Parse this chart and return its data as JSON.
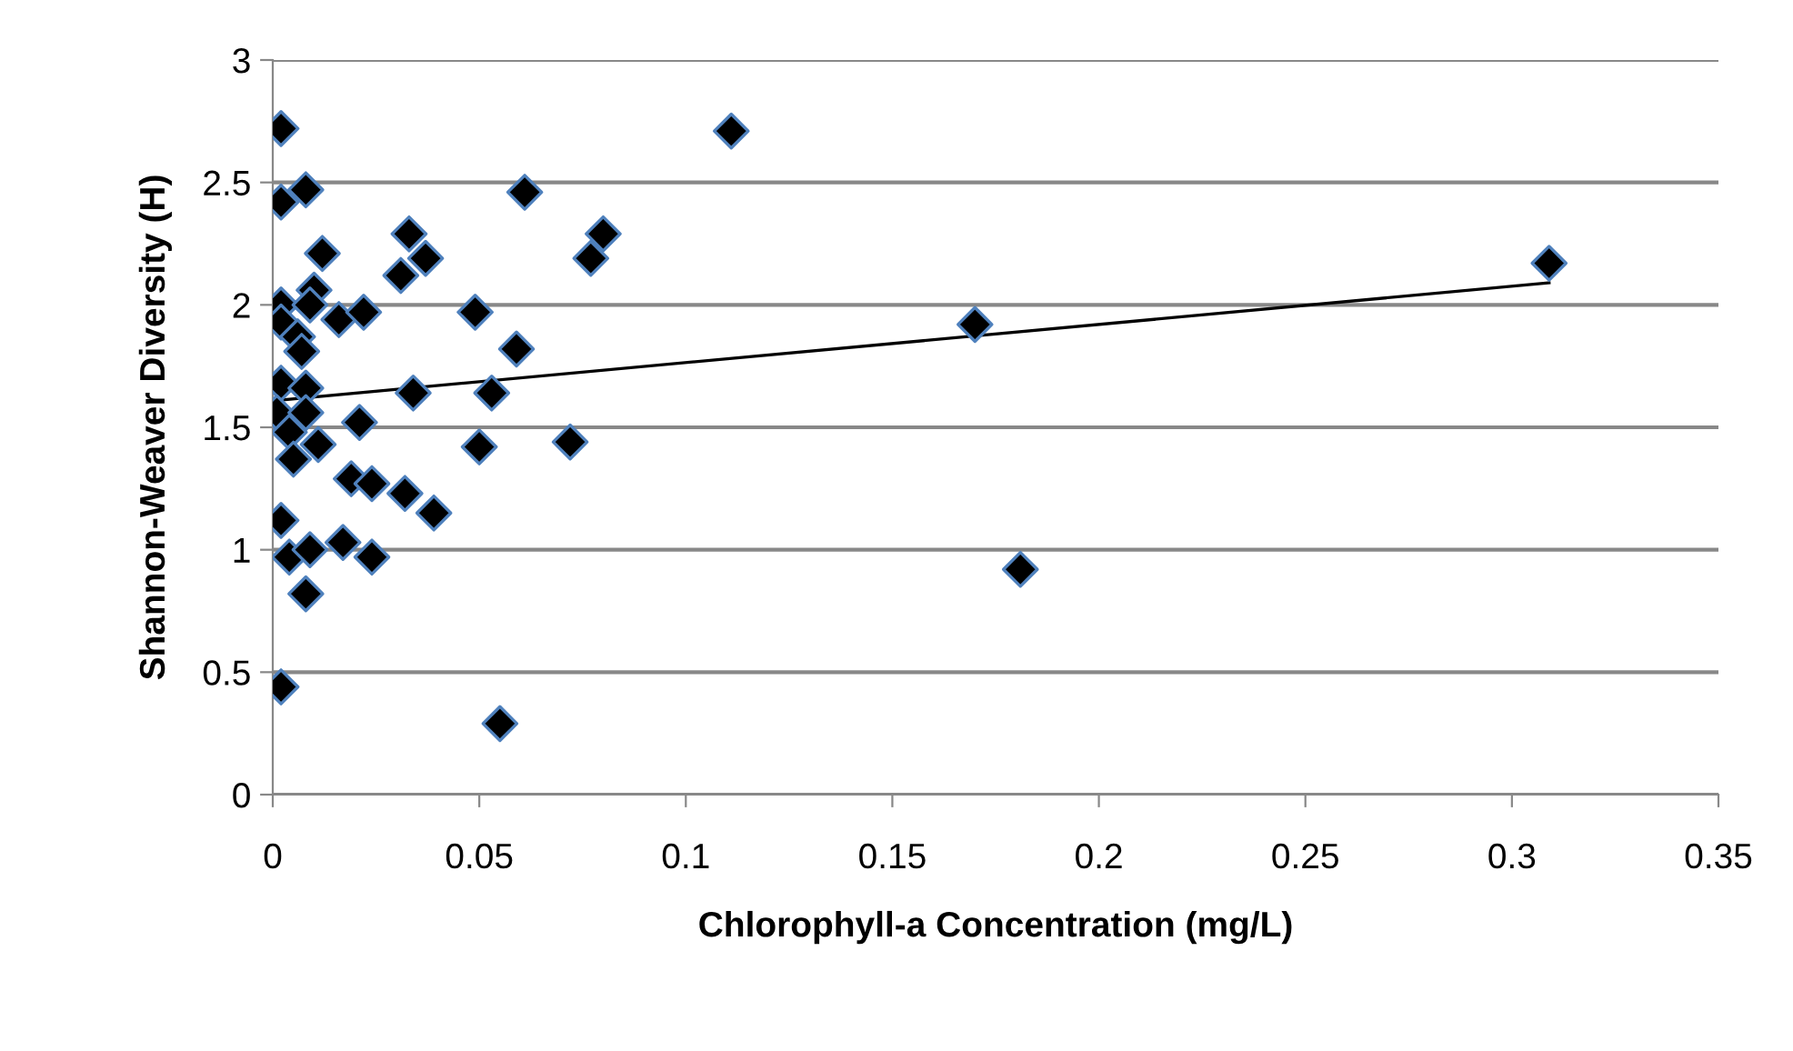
{
  "chart_data": {
    "type": "scatter",
    "xlabel": "Chlorophyll-a Concentration (mg/L)",
    "ylabel": "Shannon-Weaver Diversity (H)",
    "xlim": [
      0,
      0.35
    ],
    "xticks": [
      0,
      0.05,
      0.1,
      0.15,
      0.2,
      0.25,
      0.3,
      0.35
    ],
    "ylim": [
      0,
      3
    ],
    "yticks": [
      0,
      0.5,
      1,
      1.5,
      2,
      2.5,
      3
    ],
    "grid": "y",
    "legend": false,
    "series": [
      {
        "marker": "diamond",
        "color": "#000000",
        "x": [
          0.002,
          0.002,
          0.008,
          0.012,
          0.033,
          0.037,
          0.031,
          0.002,
          0.01,
          0.009,
          0.002,
          0.006,
          0.007,
          0.016,
          0.022,
          0.002,
          0.008,
          0.034,
          0.001,
          0.008,
          0.004,
          0.021,
          0.005,
          0.011,
          0.019,
          0.024,
          0.032,
          0.039,
          0.002,
          0.004,
          0.009,
          0.017,
          0.024,
          0.008,
          0.002,
          0.061,
          0.08,
          0.077,
          0.049,
          0.059,
          0.053,
          0.05,
          0.072,
          0.055,
          0.111,
          0.17,
          0.181,
          0.309
        ],
        "values": [
          2.72,
          2.42,
          2.47,
          2.21,
          2.29,
          2.19,
          2.12,
          2.0,
          2.06,
          2.0,
          1.93,
          1.87,
          1.81,
          1.94,
          1.97,
          1.68,
          1.66,
          1.64,
          1.56,
          1.56,
          1.48,
          1.52,
          1.37,
          1.43,
          1.29,
          1.27,
          1.23,
          1.15,
          1.12,
          0.97,
          1.0,
          1.03,
          0.97,
          0.82,
          0.44,
          2.46,
          2.29,
          2.19,
          1.97,
          1.82,
          1.64,
          1.42,
          1.44,
          0.29,
          2.71,
          1.92,
          0.92,
          2.17
        ]
      },
      {
        "type": "line",
        "color": "#000000",
        "x": [
          0.001,
          0.309
        ],
        "values": [
          1.61,
          2.09
        ]
      }
    ]
  }
}
